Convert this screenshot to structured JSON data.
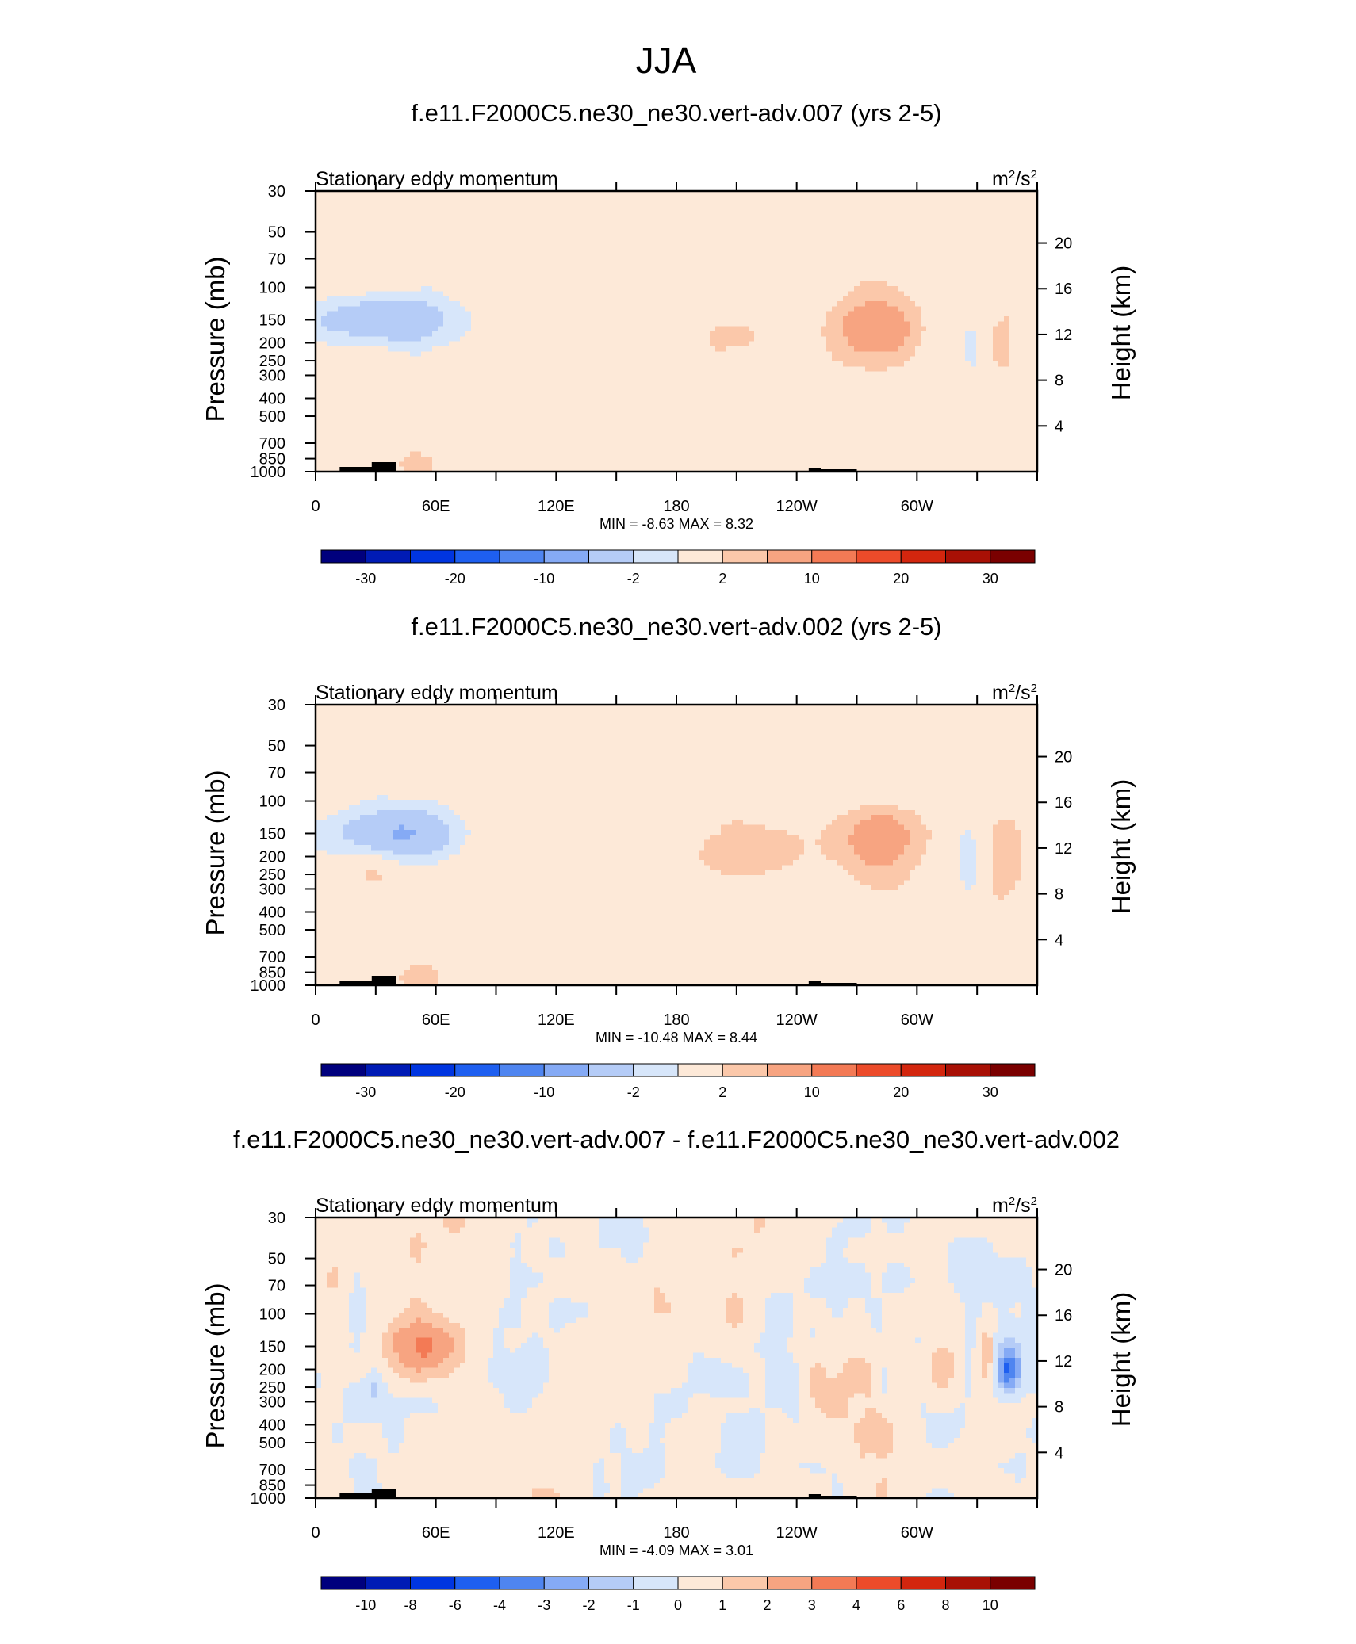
{
  "figure_title": "JJA",
  "colors": {
    "palette": [
      "#00007d",
      "#001bb5",
      "#0035e0",
      "#1e5ff0",
      "#4f85f0",
      "#85aaf5",
      "#b5ccf7",
      "#d7e6fa",
      "#fde9d8",
      "#fbc8aa",
      "#f7a481",
      "#f37a55",
      "#ec4b2a",
      "#d3260e",
      "#a81005",
      "#7a0000"
    ],
    "terrain": "#000000"
  },
  "chart_data": [
    {
      "type": "heatmap",
      "title": "f.e11.F2000C5.ne30_ne30.vert-adv.007 (yrs 2-5)",
      "subtitle": "Stationary eddy momentum",
      "units": "m²/s²",
      "units_base": "m",
      "units_exp": "2",
      "units_mid": "/s",
      "units_exp2": "2",
      "xlabel": "",
      "ylabel": "Pressure (mb)",
      "y2label": "Height (km)",
      "x_ticks": [
        "0",
        "60E",
        "120E",
        "180",
        "120W",
        "60W"
      ],
      "y_ticks": [
        "30",
        "50",
        "70",
        "100",
        "150",
        "200",
        "250",
        "300",
        "400",
        "500",
        "700",
        "850",
        "1000"
      ],
      "y2_ticks": [
        "20",
        "16",
        "12",
        "8",
        "4"
      ],
      "y_scale": "log",
      "ylim": [
        1000,
        30
      ],
      "stats": "MIN =  -8.63  MAX =   8.32",
      "min": -8.63,
      "max": 8.32,
      "colorbar_labels": [
        "-30",
        "-20",
        "-10",
        "-2",
        "2",
        "10",
        "20",
        "30"
      ],
      "features": [
        {
          "lon": 40,
          "p": 150,
          "dlon": 22,
          "dlogp": 0.1,
          "v": -8.6
        },
        {
          "lon": 8,
          "p": 150,
          "dlon": 16,
          "dlogp": 0.08,
          "v": -3.5
        },
        {
          "lon": 50,
          "p": 900,
          "dlon": 9,
          "dlogp": 0.06,
          "v": 3.0
        },
        {
          "lon": 280,
          "p": 165,
          "dlon": 14,
          "dlogp": 0.12,
          "v": 8.3
        },
        {
          "lon": 208,
          "p": 185,
          "dlon": 10,
          "dlogp": 0.06,
          "v": 2.2
        },
        {
          "lon": 327,
          "p": 190,
          "dlon": 5,
          "dlogp": 0.18,
          "v": -2.5
        },
        {
          "lon": 342,
          "p": 215,
          "dlon": 6,
          "dlogp": 0.14,
          "v": 3.0
        }
      ]
    },
    {
      "type": "heatmap",
      "title": "f.e11.F2000C5.ne30_ne30.vert-adv.002 (yrs 2-5)",
      "subtitle": "Stationary eddy momentum",
      "units": "m²/s²",
      "units_base": "m",
      "units_exp": "2",
      "units_mid": "/s",
      "units_exp2": "2",
      "xlabel": "",
      "ylabel": "Pressure (mb)",
      "y2label": "Height (km)",
      "x_ticks": [
        "0",
        "60E",
        "120E",
        "180",
        "120W",
        "60W"
      ],
      "y_ticks": [
        "30",
        "50",
        "70",
        "100",
        "150",
        "200",
        "250",
        "300",
        "400",
        "500",
        "700",
        "850",
        "1000"
      ],
      "y2_ticks": [
        "20",
        "16",
        "12",
        "8",
        "4"
      ],
      "y_scale": "log",
      "ylim": [
        1000,
        30
      ],
      "stats": "MIN = -10.48  MAX =   8.44",
      "min": -10.48,
      "max": 8.44,
      "colorbar_labels": [
        "-30",
        "-20",
        "-10",
        "-2",
        "2",
        "10",
        "20",
        "30"
      ],
      "features": [
        {
          "lon": 48,
          "p": 150,
          "dlon": 18,
          "dlogp": 0.11,
          "v": -10.5
        },
        {
          "lon": 15,
          "p": 150,
          "dlon": 18,
          "dlogp": 0.09,
          "v": -4.0
        },
        {
          "lon": 52,
          "p": 900,
          "dlon": 9,
          "dlogp": 0.06,
          "v": 3.0
        },
        {
          "lon": 30,
          "p": 230,
          "dlon": 8,
          "dlogp": 0.08,
          "v": 2.5
        },
        {
          "lon": 218,
          "p": 190,
          "dlon": 20,
          "dlogp": 0.1,
          "v": 3.8
        },
        {
          "lon": 282,
          "p": 160,
          "dlon": 12,
          "dlogp": 0.12,
          "v": 8.4
        },
        {
          "lon": 258,
          "p": 160,
          "dlon": 5,
          "dlogp": 0.06,
          "v": 2.2
        },
        {
          "lon": 325,
          "p": 200,
          "dlon": 6,
          "dlogp": 0.18,
          "v": -4.0
        },
        {
          "lon": 344,
          "p": 210,
          "dlon": 6,
          "dlogp": 0.14,
          "v": 4.2
        }
      ]
    },
    {
      "type": "heatmap",
      "title": "f.e11.F2000C5.ne30_ne30.vert-adv.007 - f.e11.F2000C5.ne30_ne30.vert-adv.002",
      "subtitle": "Stationary eddy momentum",
      "units": "m²/s²",
      "units_base": "m",
      "units_exp": "2",
      "units_mid": "/s",
      "units_exp2": "2",
      "xlabel": "",
      "ylabel": "Pressure (mb)",
      "y2label": "Height (km)",
      "x_ticks": [
        "0",
        "60E",
        "120E",
        "180",
        "120W",
        "60W"
      ],
      "y_ticks": [
        "30",
        "50",
        "70",
        "100",
        "150",
        "200",
        "250",
        "300",
        "400",
        "500",
        "700",
        "850",
        "1000"
      ],
      "y2_ticks": [
        "20",
        "16",
        "12",
        "8",
        "4"
      ],
      "y_scale": "log",
      "ylim": [
        1000,
        30
      ],
      "stats": "MIN =  -4.09  MAX =   3.01",
      "min": -4.09,
      "max": 3.01,
      "colorbar_labels": [
        "-10",
        "-8",
        "-6",
        "-4",
        "-3",
        "-2",
        "-1",
        "0",
        "1",
        "2",
        "3",
        "4",
        "6",
        "8",
        "10"
      ],
      "features": [
        {
          "lon": 53,
          "p": 150,
          "dlon": 12,
          "dlogp": 0.11,
          "v": 3.0
        },
        {
          "lon": 313,
          "p": 200,
          "dlon": 5,
          "dlogp": 0.1,
          "v": 2.2
        },
        {
          "lon": 335,
          "p": 160,
          "dlon": 3,
          "dlogp": 0.14,
          "v": 2.0
        },
        {
          "lon": 346,
          "p": 200,
          "dlon": 4,
          "dlogp": 0.08,
          "v": -4.1
        },
        {
          "lon": 283,
          "p": 230,
          "dlon": 3,
          "dlogp": 0.1,
          "v": -1.5
        },
        {
          "lon": 30,
          "p": 250,
          "dlon": 3,
          "dlogp": 0.08,
          "v": -1.3
        },
        {
          "lon": 250,
          "p": 220,
          "dlon": 3,
          "dlogp": 0.08,
          "v": 1.2
        }
      ]
    }
  ]
}
